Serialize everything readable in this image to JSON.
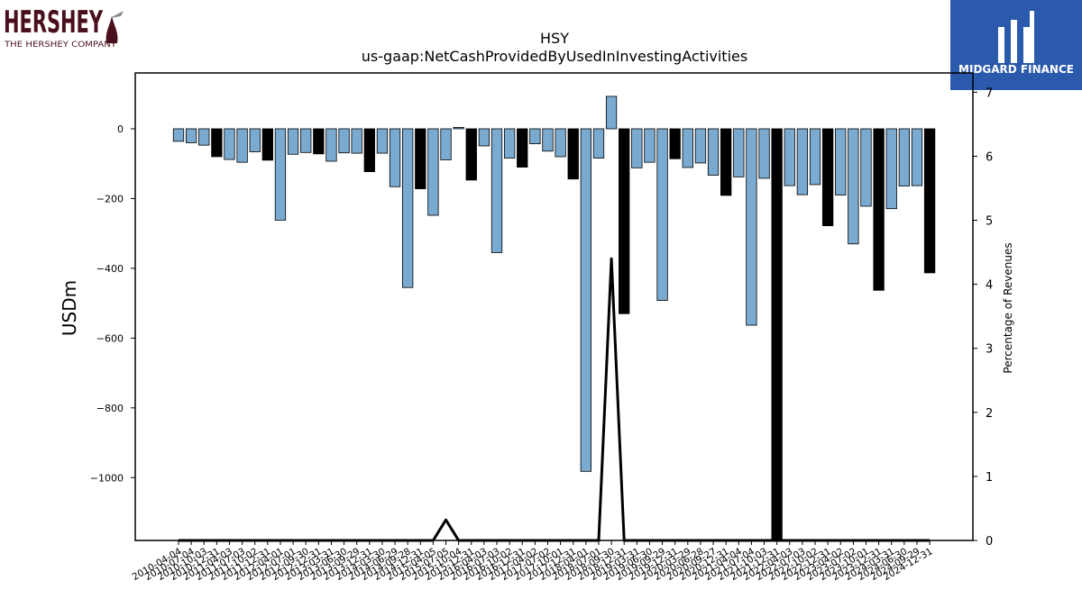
{
  "brand": {
    "company_name": "HERSHEY",
    "company_tagline": "THE HERSHEY COMPANY",
    "partner_name": "MIDGARD FINANCE",
    "partner_color": "#2b5aad",
    "brand_color": "#4a0f1c"
  },
  "chart_data": {
    "type": "bar",
    "title": "HSY",
    "subtitle": "us-gaap:NetCashProvidedByUsedInInvestingActivities",
    "ylabel": "USDm",
    "y2label": "Percentage of Revenues",
    "ylim": [
      -1180,
      160
    ],
    "y2lim": [
      0,
      7.3
    ],
    "yticks": [
      0,
      -200,
      -400,
      -600,
      -800,
      -1000
    ],
    "ytick_labels": [
      "0",
      "−200",
      "−400",
      "−600",
      "−800",
      "−1000"
    ],
    "y2ticks": [
      0,
      1,
      2,
      3,
      4,
      5,
      6,
      7
    ],
    "grid": false,
    "colors": {
      "quarterly": "#7aaad0",
      "annual": "#000000",
      "edge": "#000000"
    },
    "categories": [
      "2010-04-04",
      "2010-07-04",
      "2010-10-03",
      "2010-12-31",
      "2011-04-03",
      "2011-07-03",
      "2011-10-02",
      "2011-12-31",
      "2012-04-01",
      "2012-07-01",
      "2012-09-30",
      "2012-12-31",
      "2013-03-31",
      "2013-06-30",
      "2013-09-29",
      "2013-12-31",
      "2014-03-30",
      "2014-06-29",
      "2014-09-28",
      "2014-12-31",
      "2015-04-05",
      "2015-07-05",
      "2015-10-04",
      "2015-12-31",
      "2016-04-03",
      "2016-07-03",
      "2016-10-02",
      "2016-12-31",
      "2017-04-02",
      "2017-07-02",
      "2017-10-01",
      "2017-12-31",
      "2018-04-01",
      "2018-07-01",
      "2018-09-30",
      "2018-12-31",
      "2019-03-31",
      "2019-06-30",
      "2019-09-29",
      "2019-12-31",
      "2020-03-29",
      "2020-06-28",
      "2020-09-27",
      "2020-12-31",
      "2021-04-04",
      "2021-07-04",
      "2021-10-03",
      "2021-12-31",
      "2022-04-03",
      "2022-07-03",
      "2022-10-02",
      "2022-12-31",
      "2023-04-02",
      "2023-07-02",
      "2023-10-01",
      "2023-12-31",
      "2024-03-31",
      "2024-06-30",
      "2024-09-29",
      "2024-12-31"
    ],
    "values": [
      -36,
      -40,
      -47,
      -80,
      -88,
      -96,
      -66,
      -90,
      -262,
      -73,
      -68,
      -72,
      -93,
      -69,
      -70,
      -123,
      -70,
      -166,
      -455,
      -172,
      -248,
      -89,
      4,
      -147,
      -49,
      -355,
      -84,
      -110,
      -43,
      -64,
      -80,
      -144,
      -982,
      -84,
      93,
      -530,
      -112,
      -96,
      -492,
      -86,
      -111,
      -98,
      -133,
      -191,
      -138,
      -563,
      -142,
      -1180,
      -163,
      -189,
      -160,
      -278,
      -190,
      -330,
      -222,
      -463,
      -229,
      -164,
      -163,
      -413
    ],
    "annual": [
      false,
      false,
      false,
      true,
      false,
      false,
      false,
      true,
      false,
      false,
      false,
      true,
      false,
      false,
      false,
      true,
      false,
      false,
      false,
      true,
      false,
      false,
      false,
      true,
      false,
      false,
      false,
      true,
      false,
      false,
      false,
      true,
      false,
      false,
      false,
      true,
      false,
      false,
      false,
      true,
      false,
      false,
      false,
      true,
      false,
      false,
      false,
      true,
      false,
      false,
      false,
      true,
      false,
      false,
      false,
      true,
      false,
      false,
      false,
      true
    ],
    "line": {
      "name": "",
      "axis": "right",
      "x": [
        "2010-04-04",
        "2015-04-05",
        "2015-07-05",
        "2015-10-04",
        "2018-07-01",
        "2018-09-30",
        "2018-12-31",
        "2019-03-31",
        "2024-12-31"
      ],
      "values": [
        0,
        0,
        0.32,
        0,
        0,
        4.4,
        0,
        0,
        0
      ]
    }
  }
}
